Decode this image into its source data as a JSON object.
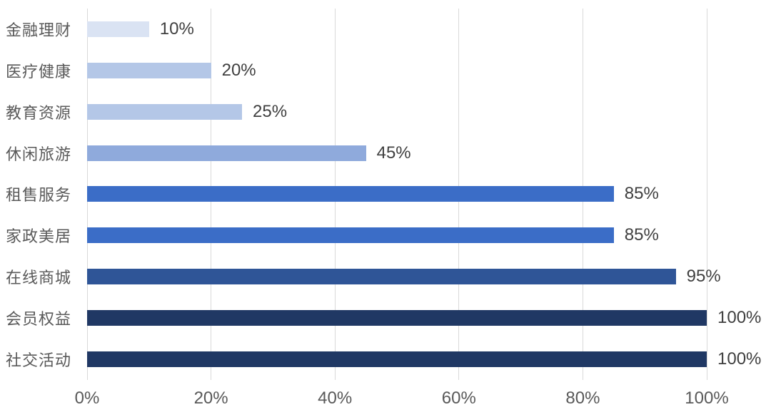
{
  "chart_data": {
    "type": "bar",
    "orientation": "horizontal",
    "title": "",
    "xlabel": "",
    "ylabel": "",
    "categories": [
      "金融理财",
      "医疗健康",
      "教育资源",
      "休闲旅游",
      "租售服务",
      "家政美居",
      "在线商城",
      "会员权益",
      "社交活动"
    ],
    "values": [
      10,
      20,
      25,
      45,
      85,
      85,
      95,
      100,
      100
    ],
    "value_labels": [
      "10%",
      "20%",
      "25%",
      "45%",
      "85%",
      "85%",
      "95%",
      "100%",
      "100%"
    ],
    "bar_colors": [
      "#dae3f3",
      "#b4c7e7",
      "#b4c7e7",
      "#8faadc",
      "#3b6dc7",
      "#3b6dc7",
      "#2f5597",
      "#203864",
      "#203864"
    ],
    "x_ticks": [
      "0%",
      "20%",
      "40%",
      "60%",
      "80%",
      "100%"
    ],
    "x_tick_values": [
      0,
      20,
      40,
      60,
      80,
      100
    ],
    "xlim": [
      0,
      100
    ],
    "grid": true,
    "legend": "none",
    "colors": {
      "gridline": "#d9d9d9",
      "category_label": "#595959",
      "value_label": "#404040",
      "axis_tick_label": "#595959",
      "background": "#ffffff"
    }
  }
}
